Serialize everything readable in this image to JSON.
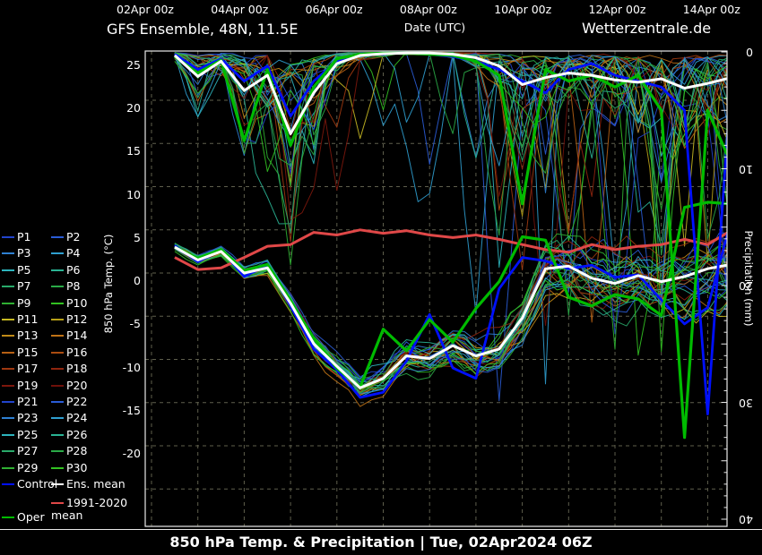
{
  "header": {
    "title": "GFS Ensemble, 48N, 11.5E",
    "date_axis_label": "Date (UTC)",
    "site": "Wetterzentrale.de"
  },
  "footer": {
    "title": "850 hPa Temp. & Precipitation | Tue, 02Apr2024 06Z"
  },
  "legend": {
    "member_labels": [
      "P1",
      "P2",
      "P3",
      "P4",
      "P5",
      "P6",
      "P7",
      "P8",
      "P9",
      "P10",
      "P11",
      "P12",
      "P13",
      "P14",
      "P15",
      "P16",
      "P17",
      "P18",
      "P19",
      "P20",
      "P21",
      "P22",
      "P23",
      "P24",
      "P25",
      "P26",
      "P27",
      "P28",
      "P29",
      "P30"
    ],
    "control_label": "Control",
    "ens_mean_label": "Ens. mean",
    "climate_label": "1991-2020 mean",
    "oper_label": "Oper"
  },
  "chart_data": {
    "type": "line",
    "x_axis": {
      "labels": [
        "02Apr 00z",
        "04Apr 00z",
        "06Apr 00z",
        "08Apr 00z",
        "10Apr 00z",
        "12Apr 00z",
        "14Apr 00z"
      ],
      "label_every_hours": 48,
      "grid_every_hours": 24,
      "domain_hours": [
        -3,
        298
      ]
    },
    "temp_axis": {
      "label": "850 hPa Temp. (°C)",
      "ticks": [
        25,
        20,
        15,
        10,
        5,
        0,
        -5,
        -10,
        -15,
        -20
      ],
      "range": [
        -25.7,
        25.7
      ]
    },
    "precip_axis": {
      "label": "Precipitation (mm)",
      "ticks": [
        0,
        10,
        20,
        30,
        40
      ],
      "range": [
        0,
        40.6
      ]
    },
    "colors": {
      "control": "#0010ff",
      "oper": "#00bb00",
      "ens_mean": "#ffffff",
      "climate_mean": "#e04848",
      "grid": "#5f5f4d",
      "member_palette": [
        "#2244cc",
        "#2a5cd6",
        "#2e80d2",
        "#2f9fd0",
        "#2db4bd",
        "#2ab394",
        "#29aa6a",
        "#2aaa47",
        "#2fb032",
        "#32c222",
        "#c6b822",
        "#b7a018",
        "#c08a18",
        "#bf7216",
        "#b76014",
        "#ab4c10",
        "#9f3810",
        "#8f250e",
        "#7d170c",
        "#6f100a"
      ]
    },
    "x_hours": [
      12,
      24,
      36,
      48,
      60,
      72,
      84,
      96,
      108,
      120,
      132,
      144,
      156,
      168,
      180,
      192,
      204,
      216,
      228,
      240,
      252,
      264,
      276,
      288,
      300
    ],
    "series": [
      {
        "name": "1991-2020 mean",
        "axis": "temp",
        "width": 3.0,
        "color_key": "climate_mean",
        "values": [
          1.8,
          0.4,
          0.6,
          1.8,
          3.1,
          3.3,
          4.7,
          4.4,
          5.0,
          4.6,
          4.9,
          4.4,
          4.1,
          4.4,
          3.9,
          3.3,
          2.7,
          2.4,
          3.3,
          2.7,
          3.1,
          3.3,
          3.9,
          3.3,
          4.9
        ]
      },
      {
        "name": "Control",
        "axis": "temp",
        "width": 2.8,
        "color_key": "control",
        "values": [
          3.2,
          1.3,
          2.7,
          -0.4,
          0.9,
          -3.8,
          -8.8,
          -11.2,
          -14.4,
          -13.8,
          -10.2,
          -4.8,
          -11.0,
          -12.2,
          -1.8,
          1.8,
          1.4,
          0.5,
          0.9,
          -0.5,
          -0.2,
          -3.1,
          -5.9,
          -4.0,
          6.0
        ]
      },
      {
        "name": "Oper",
        "axis": "temp",
        "width": 3.2,
        "color_key": "oper",
        "values": [
          3.0,
          1.7,
          2.7,
          0.3,
          1.0,
          -3.2,
          -7.6,
          -11.0,
          -13.2,
          -6.5,
          -9.0,
          -5.4,
          -8.0,
          -4.1,
          -1.0,
          4.2,
          3.8,
          -2.8,
          -3.8,
          -2.5,
          -3.0,
          -4.9,
          7.6,
          8.2,
          8.0
        ]
      },
      {
        "name": "Ens. mean",
        "axis": "temp",
        "width": 3.0,
        "color_key": "ens_mean",
        "values": [
          3.0,
          1.5,
          2.5,
          0.0,
          0.6,
          -3.5,
          -8.2,
          -10.8,
          -13.3,
          -12.2,
          -9.6,
          -9.9,
          -8.4,
          -9.6,
          -8.8,
          -5.2,
          0.5,
          0.8,
          -0.6,
          -1.2,
          -0.3,
          -1.0,
          -0.4,
          0.5,
          1.0
        ]
      },
      {
        "name": "Control precip",
        "axis": "precip",
        "width": 2.8,
        "color_key": "control",
        "values": [
          0.2,
          1.5,
          0.6,
          2.5,
          1.2,
          5.5,
          2.5,
          0.8,
          0.2,
          0.1,
          0.1,
          0.2,
          0.4,
          0.8,
          1.5,
          2.5,
          3.5,
          1.5,
          1.0,
          2.0,
          2.5,
          3.0,
          5.0,
          31.0,
          3.0
        ]
      },
      {
        "name": "Oper precip",
        "axis": "precip",
        "width": 3.2,
        "color_key": "oper",
        "values": [
          0.4,
          1.8,
          0.7,
          7.6,
          1.5,
          8.0,
          3.0,
          0.6,
          0.2,
          0.1,
          0.1,
          0.2,
          0.3,
          0.8,
          2.0,
          13.0,
          1.5,
          2.5,
          2.0,
          3.0,
          2.0,
          5.0,
          33.0,
          5.0,
          9.5
        ]
      },
      {
        "name": "Ens. mean precip",
        "axis": "precip",
        "width": 3.0,
        "color_key": "ens_mean",
        "values": [
          0.3,
          2.1,
          0.8,
          3.3,
          2.0,
          7.0,
          3.5,
          1.0,
          0.3,
          0.15,
          0.1,
          0.1,
          0.2,
          0.5,
          1.2,
          2.8,
          2.2,
          1.8,
          2.0,
          2.4,
          2.6,
          2.3,
          3.1,
          2.7,
          2.2
        ]
      }
    ],
    "ensemble": {
      "count": 30,
      "temp_mean_series": "Ens. mean",
      "precip_base_series": "Ens. mean precip",
      "temp_spread": [
        0.6,
        0.8,
        0.9,
        1.0,
        1.2,
        1.6,
        2.0,
        2.2,
        2.4,
        2.6,
        2.8,
        3.0,
        3.4,
        3.6,
        3.8,
        4.2,
        4.8,
        5.2,
        5.4,
        5.6,
        5.8,
        6.0,
        6.2,
        6.4,
        6.6
      ]
    }
  }
}
